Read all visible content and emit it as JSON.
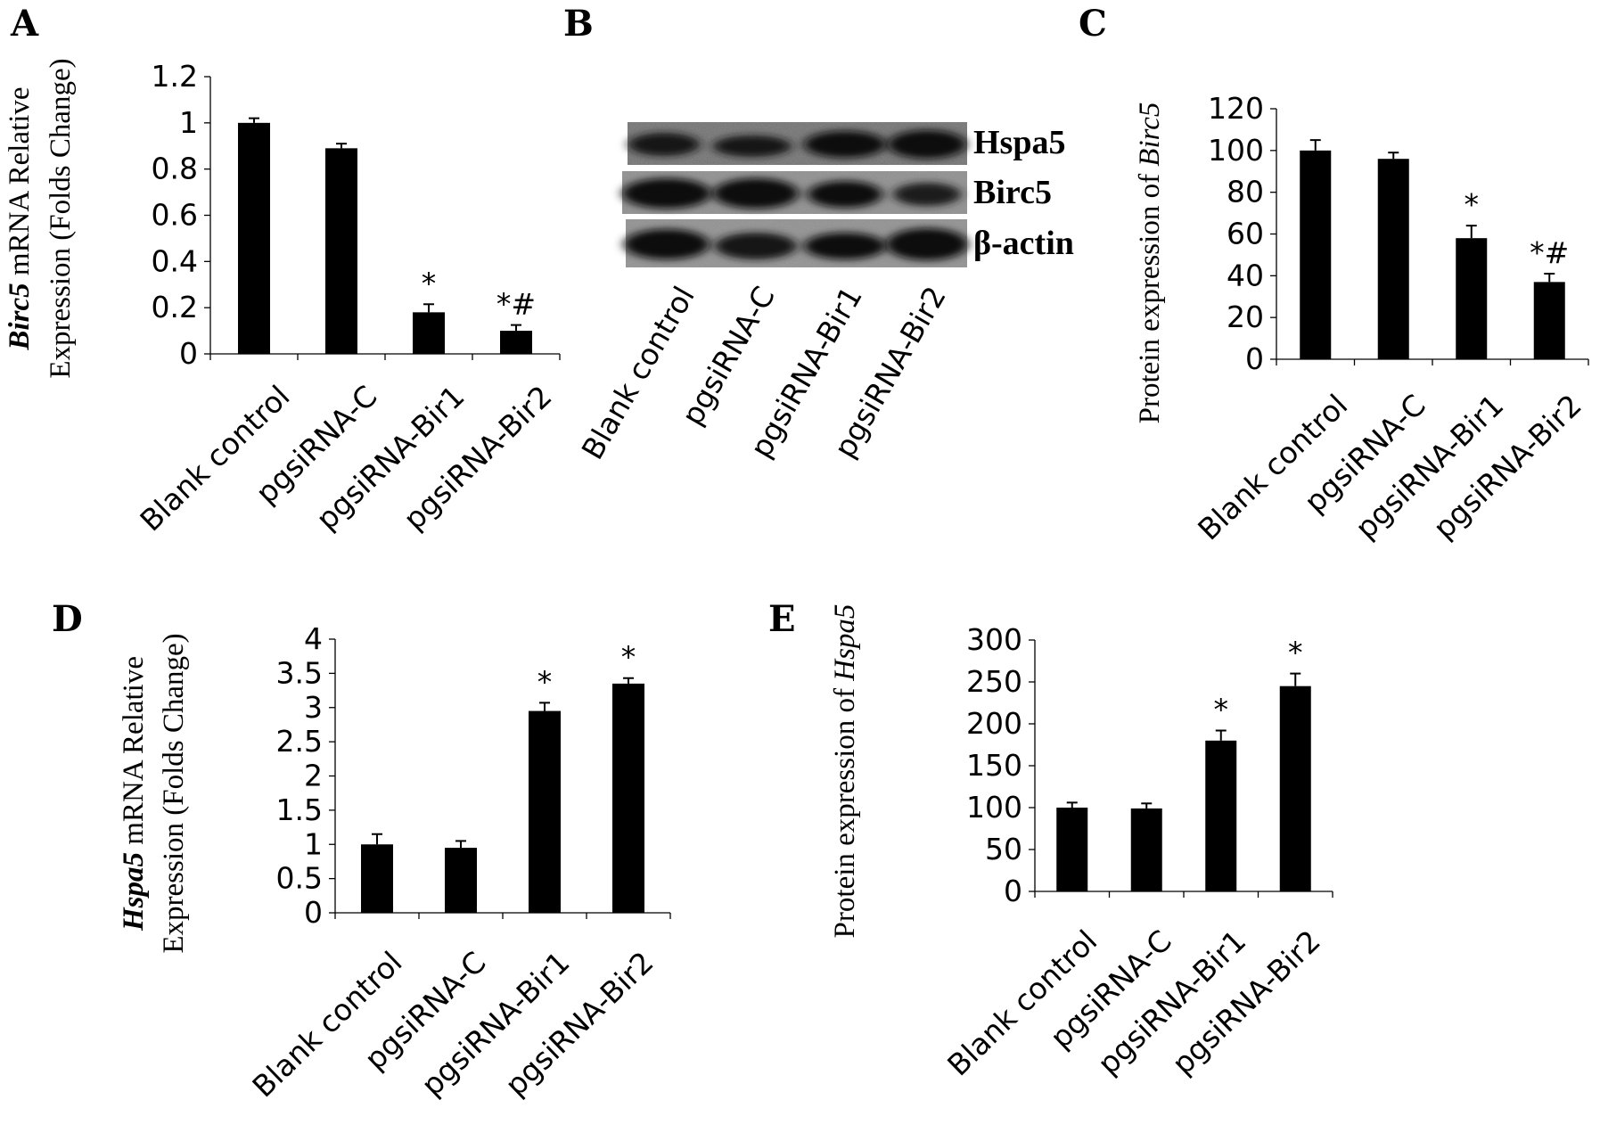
{
  "panels": [
    "A",
    "B",
    "C",
    "D",
    "E"
  ],
  "blot": {
    "bands": [
      "Hspa5",
      "Birc5",
      "β-actin"
    ],
    "lanes": [
      "Blank control",
      "pgsiRNA-C",
      "pgsiRNA-Bir1",
      "pgsiRNA-Bir2"
    ]
  },
  "chart_data": [
    {
      "panel": "A",
      "type": "bar",
      "categories": [
        "Blank control",
        "pgsiRNA-C",
        "pgsiRNA-Bir1",
        "pgsiRNA-Bir2"
      ],
      "values": [
        1.0,
        0.89,
        0.18,
        0.1
      ],
      "errors": [
        0.02,
        0.02,
        0.035,
        0.025
      ],
      "annotations": [
        "",
        "",
        "*",
        "*#"
      ],
      "ylabel": {
        "gene": "Birc5",
        "line1_rest": " mRNA Relative",
        "line2": "Expression (Folds Change)"
      },
      "ylim": [
        0,
        1.2
      ],
      "yticks": [
        "0",
        "0.2",
        "0.4",
        "0.6",
        "0.8",
        "1",
        "1.2"
      ],
      "bar_color": "#000000"
    },
    {
      "panel": "C",
      "type": "bar",
      "categories": [
        "Blank control",
        "pgsiRNA-C",
        "pgsiRNA-Bir1",
        "pgsiRNA-Bir2"
      ],
      "values": [
        100,
        96,
        58,
        37
      ],
      "errors": [
        5,
        3,
        6,
        4
      ],
      "annotations": [
        "",
        "",
        "*",
        "*#"
      ],
      "ylabel": {
        "prefix": "Protein expression of ",
        "gene": "Birc5"
      },
      "ylim": [
        0,
        120
      ],
      "yticks": [
        "0",
        "20",
        "40",
        "60",
        "80",
        "100",
        "120"
      ],
      "bar_color": "#000000"
    },
    {
      "panel": "D",
      "type": "bar",
      "categories": [
        "Blank control",
        "pgsiRNA-C",
        "pgsiRNA-Bir1",
        "pgsiRNA-Bir2"
      ],
      "values": [
        1.0,
        0.95,
        2.95,
        3.35
      ],
      "errors": [
        0.15,
        0.1,
        0.12,
        0.08
      ],
      "annotations": [
        "",
        "",
        "*",
        "*"
      ],
      "ylabel": {
        "gene": "Hspa5",
        "line1_rest": " mRNA Relative",
        "line2": "Expression (Folds Change)"
      },
      "ylim": [
        0,
        4
      ],
      "yticks": [
        "0",
        "0.5",
        "1",
        "1.5",
        "2",
        "2.5",
        "3",
        "3.5",
        "4"
      ],
      "bar_color": "#000000"
    },
    {
      "panel": "E",
      "type": "bar",
      "categories": [
        "Blank control",
        "pgsiRNA-C",
        "pgsiRNA-Bir1",
        "pgsiRNA-Bir2"
      ],
      "values": [
        100,
        99,
        180,
        245
      ],
      "errors": [
        6,
        6,
        12,
        15
      ],
      "annotations": [
        "",
        "",
        "*",
        "*"
      ],
      "ylabel": {
        "prefix": "Protein expression of ",
        "gene": "Hspa5"
      },
      "ylim": [
        0,
        300
      ],
      "yticks": [
        "0",
        "50",
        "100",
        "150",
        "200",
        "250",
        "300"
      ],
      "bar_color": "#000000"
    }
  ]
}
